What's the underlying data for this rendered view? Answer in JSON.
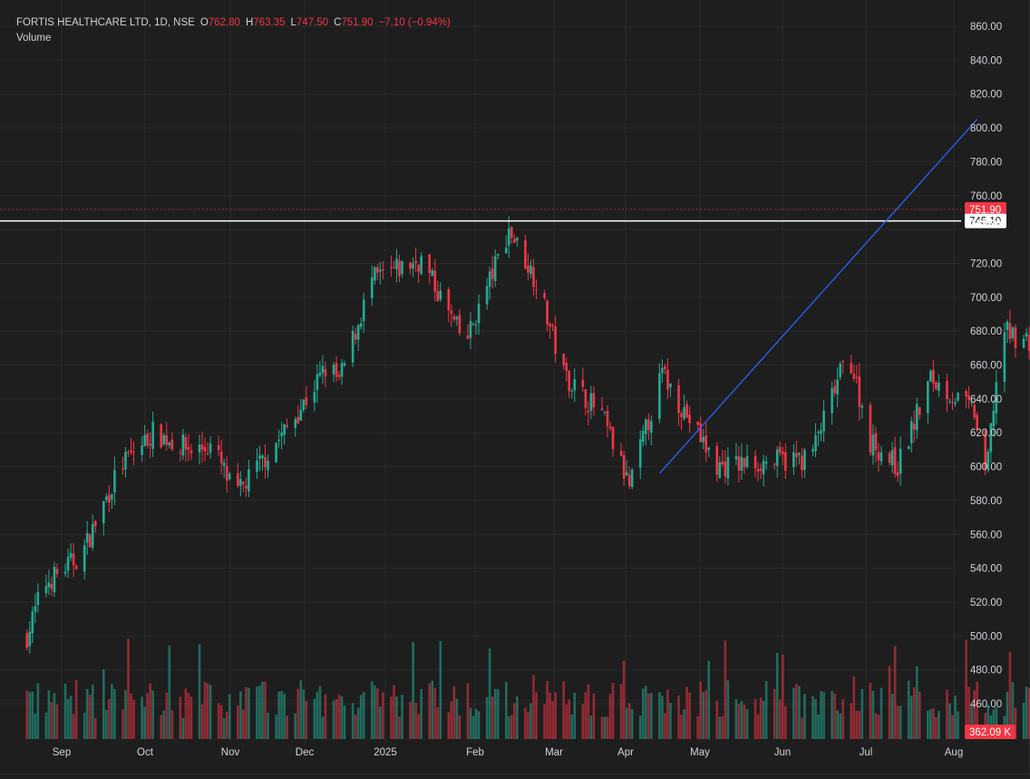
{
  "header": {
    "symbol": "FORTIS HEALTHCARE LTD, 1D, NSE",
    "o_label": "O",
    "o_value": "762.80",
    "h_label": "H",
    "h_value": "763.35",
    "l_label": "L",
    "l_value": "747.50",
    "c_label": "C",
    "c_value": "751.90",
    "change": "−7.10 (−0.94%)",
    "volume_label": "Volume"
  },
  "colors": {
    "background": "#1e1e1e",
    "grid": "#2a2a2a",
    "axis_text": "#d1d4dc",
    "up": "#22ab94",
    "down": "#f23645",
    "trendline": "#2962ff",
    "resistance_line": "#ffffff"
  },
  "chart_data": {
    "type": "candlestick",
    "symbol": "FORTIS HEALTHCARE LTD",
    "interval": "1D",
    "exchange": "NSE",
    "price_ticks": [
      "860.00",
      "840.00",
      "820.00",
      "800.00",
      "780.00",
      "760.00",
      "720.00",
      "700.00",
      "680.00",
      "660.00",
      "640.00",
      "620.00",
      "600.00",
      "580.00",
      "560.00",
      "540.00",
      "520.00",
      "500.00",
      "480.00",
      "460.00"
    ],
    "ylim": [
      450,
      866
    ],
    "time_ticks": [
      "Sep",
      "Oct",
      "Nov",
      "Dec",
      "2025",
      "Feb",
      "Mar",
      "Apr",
      "May",
      "Jun",
      "Jul",
      "Aug"
    ],
    "last_price": {
      "label": "751.90",
      "value": 751.9
    },
    "horizontal_line": {
      "label": "745.10",
      "value": 745.1
    },
    "secondary_level": {
      "label": "743.30",
      "value": 743.3
    },
    "volume_label": "362.09 K",
    "trendline": {
      "from": {
        "date": "2025-04-07",
        "price": 596
      },
      "to": {
        "date": "2025-08-01",
        "price": 805
      }
    },
    "volume_max_k": 1500,
    "grid": true,
    "start_date": "2024-08-19"
  }
}
